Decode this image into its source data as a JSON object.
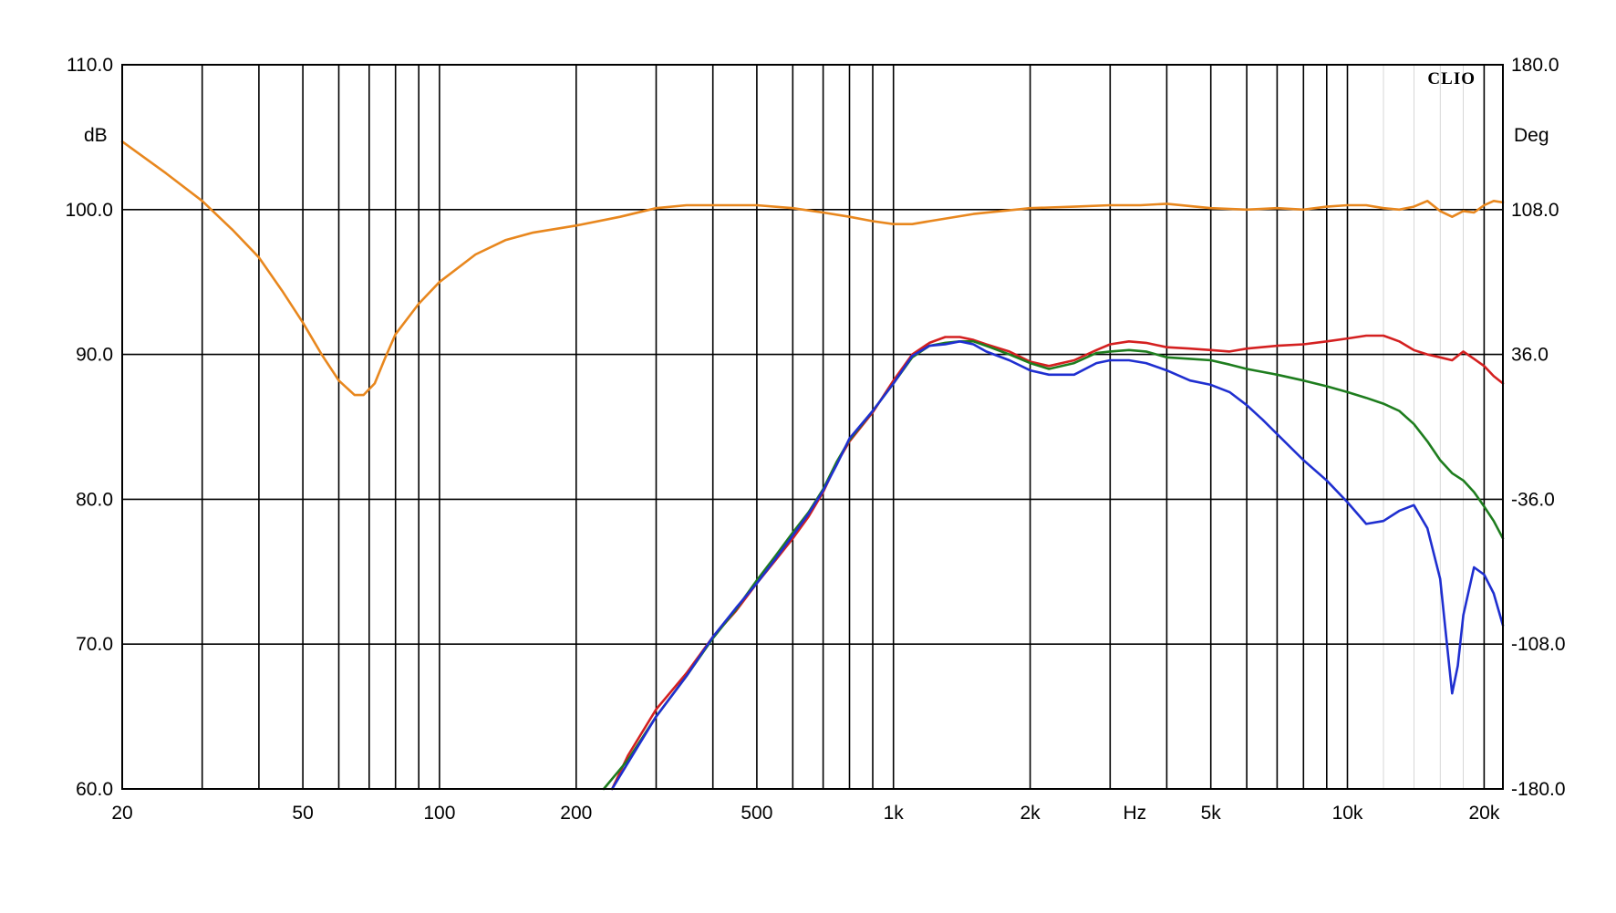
{
  "chart_data": {
    "type": "line",
    "brand": "CLIO",
    "x_scale": "log",
    "xlim": [
      20,
      22000
    ],
    "ylim": [
      60,
      110
    ],
    "y2lim": [
      -180,
      180
    ],
    "grid": true,
    "xlabel": "Hz",
    "ylabel": "dB",
    "y2label": "Deg",
    "x_ticks": [
      {
        "value": 20,
        "label": "20"
      },
      {
        "value": 50,
        "label": "50"
      },
      {
        "value": 100,
        "label": "100"
      },
      {
        "value": 200,
        "label": "200"
      },
      {
        "value": 500,
        "label": "500"
      },
      {
        "value": 1000,
        "label": "1k"
      },
      {
        "value": 2000,
        "label": "2k"
      },
      {
        "value": 3400,
        "label": "Hz"
      },
      {
        "value": 5000,
        "label": "5k"
      },
      {
        "value": 10000,
        "label": "10k"
      },
      {
        "value": 20000,
        "label": "20k"
      }
    ],
    "x_gridlines": [
      20,
      30,
      40,
      50,
      60,
      70,
      80,
      90,
      100,
      200,
      300,
      400,
      500,
      600,
      700,
      800,
      900,
      1000,
      2000,
      3000,
      4000,
      5000,
      6000,
      7000,
      8000,
      9000,
      10000,
      20000
    ],
    "y_ticks": [
      {
        "value": 110,
        "label": "110.0"
      },
      {
        "value": 100,
        "label": "100.0"
      },
      {
        "value": 90,
        "label": "90.0"
      },
      {
        "value": 80,
        "label": "80.0"
      },
      {
        "value": 70,
        "label": "70.0"
      },
      {
        "value": 60,
        "label": "60.0"
      }
    ],
    "y2_ticks": [
      {
        "value": 180,
        "label": "180.0"
      },
      {
        "value": 108,
        "label": "108.0"
      },
      {
        "value": 36,
        "label": "36.0"
      },
      {
        "value": -36,
        "label": "-36.0"
      },
      {
        "value": -108,
        "label": "-108.0"
      },
      {
        "value": -180,
        "label": "-180.0"
      }
    ],
    "series": [
      {
        "color": "#e8871e",
        "x": [
          20,
          25,
          30,
          35,
          40,
          45,
          50,
          55,
          60,
          65,
          68,
          72,
          76,
          80,
          90,
          100,
          120,
          140,
          160,
          200,
          250,
          300,
          350,
          400,
          500,
          600,
          700,
          800,
          900,
          1000,
          1100,
          1200,
          1500,
          2000,
          2500,
          3000,
          3500,
          4000,
          5000,
          6000,
          7000,
          8000,
          9000,
          10000,
          11000,
          12000,
          13000,
          14000,
          15000,
          16000,
          17000,
          18000,
          19000,
          20000,
          21000,
          22000
        ],
        "y": [
          104.7,
          102.5,
          100.6,
          98.6,
          96.7,
          94.4,
          92.2,
          90.0,
          88.2,
          87.2,
          87.2,
          88.0,
          89.8,
          91.4,
          93.5,
          95.0,
          96.9,
          97.9,
          98.4,
          98.9,
          99.5,
          100.1,
          100.3,
          100.3,
          100.3,
          100.1,
          99.8,
          99.5,
          99.2,
          99.0,
          99.0,
          99.2,
          99.7,
          100.1,
          100.2,
          100.3,
          100.3,
          100.4,
          100.1,
          100.0,
          100.1,
          100.0,
          100.2,
          100.3,
          100.3,
          100.1,
          100.0,
          100.2,
          100.6,
          99.9,
          99.5,
          99.9,
          99.8,
          100.3,
          100.6,
          100.5
        ]
      },
      {
        "color": "#d42020",
        "x": [
          240,
          260,
          300,
          350,
          400,
          450,
          500,
          550,
          600,
          650,
          700,
          750,
          800,
          900,
          1000,
          1100,
          1200,
          1300,
          1400,
          1500,
          1600,
          1800,
          2000,
          2200,
          2500,
          2800,
          3000,
          3300,
          3600,
          4000,
          4500,
          5000,
          5500,
          6000,
          7000,
          8000,
          9000,
          10000,
          11000,
          12000,
          13000,
          14000,
          15000,
          16000,
          17000,
          18000,
          19000,
          20000,
          21000,
          22000
        ],
        "y": [
          60.0,
          62.3,
          65.5,
          68.0,
          70.5,
          72.3,
          74.2,
          75.8,
          77.3,
          78.8,
          80.5,
          82.5,
          84.0,
          86.0,
          88.2,
          90.0,
          90.8,
          91.2,
          91.2,
          91.0,
          90.7,
          90.2,
          89.5,
          89.2,
          89.6,
          90.3,
          90.7,
          90.9,
          90.8,
          90.5,
          90.4,
          90.3,
          90.2,
          90.4,
          90.6,
          90.7,
          90.9,
          91.1,
          91.3,
          91.3,
          90.9,
          90.3,
          90.0,
          89.8,
          89.6,
          90.2,
          89.7,
          89.2,
          88.5,
          88.0
        ]
      },
      {
        "color": "#1e7d1e",
        "x": [
          230,
          260,
          300,
          350,
          400,
          450,
          500,
          550,
          600,
          650,
          700,
          750,
          800,
          900,
          1000,
          1100,
          1200,
          1300,
          1400,
          1500,
          1600,
          1800,
          2000,
          2200,
          2500,
          2800,
          3000,
          3300,
          3600,
          4000,
          4500,
          5000,
          5500,
          6000,
          7000,
          8000,
          9000,
          10000,
          11000,
          12000,
          13000,
          14000,
          15000,
          16000,
          17000,
          18000,
          19000,
          20000,
          21000,
          22000
        ],
        "y": [
          60.0,
          62.0,
          65.0,
          67.8,
          70.4,
          72.4,
          74.4,
          76.1,
          77.7,
          79.1,
          80.7,
          82.6,
          84.1,
          86.1,
          88.0,
          89.8,
          90.6,
          90.8,
          90.9,
          90.9,
          90.6,
          90.0,
          89.4,
          89.0,
          89.4,
          90.1,
          90.2,
          90.3,
          90.2,
          89.8,
          89.7,
          89.6,
          89.3,
          89.0,
          88.6,
          88.2,
          87.8,
          87.4,
          87.0,
          86.6,
          86.1,
          85.2,
          84.0,
          82.7,
          81.8,
          81.3,
          80.5,
          79.5,
          78.5,
          77.3
        ]
      },
      {
        "color": "#1f2fd0",
        "x": [
          240,
          260,
          300,
          350,
          400,
          450,
          500,
          550,
          600,
          650,
          700,
          750,
          800,
          900,
          1000,
          1100,
          1200,
          1300,
          1400,
          1500,
          1600,
          1800,
          2000,
          2200,
          2500,
          2800,
          3000,
          3300,
          3600,
          4000,
          4500,
          5000,
          5500,
          6000,
          6500,
          7000,
          8000,
          9000,
          10000,
          11000,
          12000,
          13000,
          14000,
          15000,
          16000,
          16500,
          17000,
          17500,
          18000,
          19000,
          20000,
          21000,
          22000
        ],
        "y": [
          60.0,
          61.8,
          65.0,
          67.8,
          70.5,
          72.5,
          74.2,
          75.9,
          77.5,
          79.0,
          80.6,
          82.4,
          84.2,
          86.1,
          88.0,
          89.9,
          90.6,
          90.7,
          90.9,
          90.7,
          90.2,
          89.6,
          88.9,
          88.6,
          88.6,
          89.4,
          89.6,
          89.6,
          89.4,
          88.9,
          88.2,
          87.9,
          87.4,
          86.5,
          85.5,
          84.5,
          82.7,
          81.3,
          79.8,
          78.3,
          78.5,
          79.2,
          79.6,
          78.0,
          74.5,
          70.5,
          66.6,
          68.5,
          72.0,
          75.3,
          74.8,
          73.5,
          71.3
        ]
      }
    ]
  }
}
